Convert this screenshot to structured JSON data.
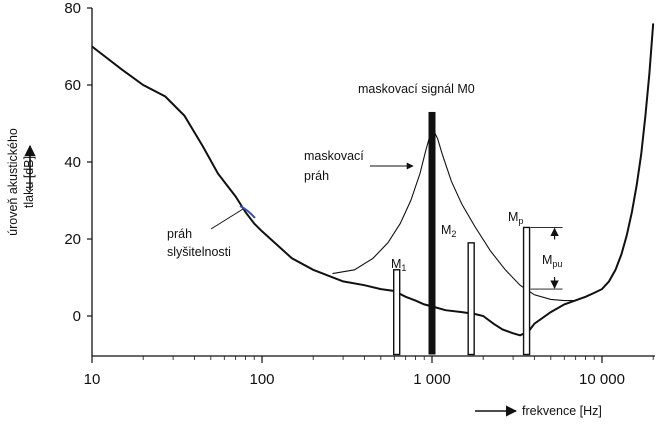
{
  "chart_data": {
    "type": "line",
    "title": "",
    "xlabel": "frekvence [Hz]",
    "ylabel": "úroveň akustického tlaku [dB]",
    "ylabel_lines": [
      "úroveň akustického",
      "tlaku [dB]"
    ],
    "x_scale": "log",
    "xlim": [
      10,
      20000
    ],
    "ylim": [
      -10,
      80
    ],
    "grid": false,
    "x_ticks": [
      {
        "value": 10,
        "label": "10"
      },
      {
        "value": 100,
        "label": "100"
      },
      {
        "value": 1000,
        "label": "1 000"
      },
      {
        "value": 10000,
        "label": "10 000"
      }
    ],
    "y_ticks": [
      {
        "value": 0,
        "label": "0"
      },
      {
        "value": 20,
        "label": "20"
      },
      {
        "value": 40,
        "label": "40"
      },
      {
        "value": 60,
        "label": "60"
      },
      {
        "value": 80,
        "label": "80"
      }
    ],
    "series": [
      {
        "key": "hearing-threshold",
        "points": [
          [
            10,
            70
          ],
          [
            15,
            64
          ],
          [
            20,
            60
          ],
          [
            27,
            57
          ],
          [
            35,
            52
          ],
          [
            45,
            44
          ],
          [
            55,
            37
          ],
          [
            70,
            31
          ],
          [
            80,
            27
          ],
          [
            90,
            24
          ],
          [
            100,
            22
          ],
          [
            150,
            15
          ],
          [
            200,
            12
          ],
          [
            300,
            9
          ],
          [
            400,
            8
          ],
          [
            500,
            7
          ],
          [
            600,
            6.5
          ],
          [
            700,
            5
          ],
          [
            800,
            4
          ],
          [
            900,
            3
          ],
          [
            1000,
            2.5
          ],
          [
            1200,
            1.5
          ],
          [
            1500,
            1
          ],
          [
            1800,
            0.5
          ],
          [
            2000,
            0
          ],
          [
            2300,
            -2
          ],
          [
            2600,
            -3.5
          ],
          [
            3000,
            -4.5
          ],
          [
            3300,
            -5
          ],
          [
            3700,
            -4
          ],
          [
            4000,
            -2
          ],
          [
            5000,
            1
          ],
          [
            6000,
            3
          ],
          [
            8000,
            5
          ],
          [
            9000,
            6
          ],
          [
            10000,
            7
          ],
          [
            11000,
            9
          ],
          [
            12000,
            12
          ],
          [
            13000,
            16
          ],
          [
            14000,
            21
          ],
          [
            15000,
            27
          ],
          [
            16000,
            34
          ],
          [
            17000,
            42
          ],
          [
            18000,
            52
          ],
          [
            19000,
            63
          ],
          [
            20000,
            76
          ]
        ]
      },
      {
        "key": "masking-threshold",
        "points": [
          [
            260,
            11
          ],
          [
            350,
            12
          ],
          [
            450,
            15
          ],
          [
            550,
            19
          ],
          [
            650,
            24
          ],
          [
            750,
            30
          ],
          [
            850,
            37
          ],
          [
            920,
            43
          ],
          [
            960,
            46
          ],
          [
            1000,
            47.5
          ],
          [
            1040,
            47.5
          ],
          [
            1080,
            46
          ],
          [
            1150,
            42
          ],
          [
            1300,
            35
          ],
          [
            1500,
            29
          ],
          [
            1800,
            23
          ],
          [
            2200,
            17
          ],
          [
            2700,
            12
          ],
          [
            3300,
            8
          ],
          [
            4000,
            5.5
          ],
          [
            5000,
            4.3
          ],
          [
            6000,
            4
          ],
          [
            6800,
            4
          ]
        ]
      }
    ],
    "bars": [
      {
        "key": "M0",
        "x": 1000,
        "bottom": -10,
        "top": 53,
        "filled": true
      },
      {
        "key": "M1",
        "x": 620,
        "bottom": -10,
        "top": 12,
        "filled": false
      },
      {
        "key": "M2",
        "x": 1700,
        "bottom": -10,
        "top": 19,
        "filled": false
      },
      {
        "key": "Mp",
        "x": 3600,
        "bottom": -10,
        "top": 23,
        "filled": false
      }
    ],
    "annotations": {
      "masker_label": "maskovací signál M0",
      "masking_threshold_label": [
        "maskovací",
        "práh"
      ],
      "hearing_threshold_label": [
        "práh",
        "slyšitelnosti"
      ],
      "m1": {
        "main": "M",
        "sub": "1"
      },
      "m2": {
        "main": "M",
        "sub": "2"
      },
      "mp": {
        "main": "M",
        "sub": "p"
      },
      "mpu": {
        "main": "M",
        "sub": "pu",
        "from_db": 23,
        "to_db": 7
      }
    }
  }
}
